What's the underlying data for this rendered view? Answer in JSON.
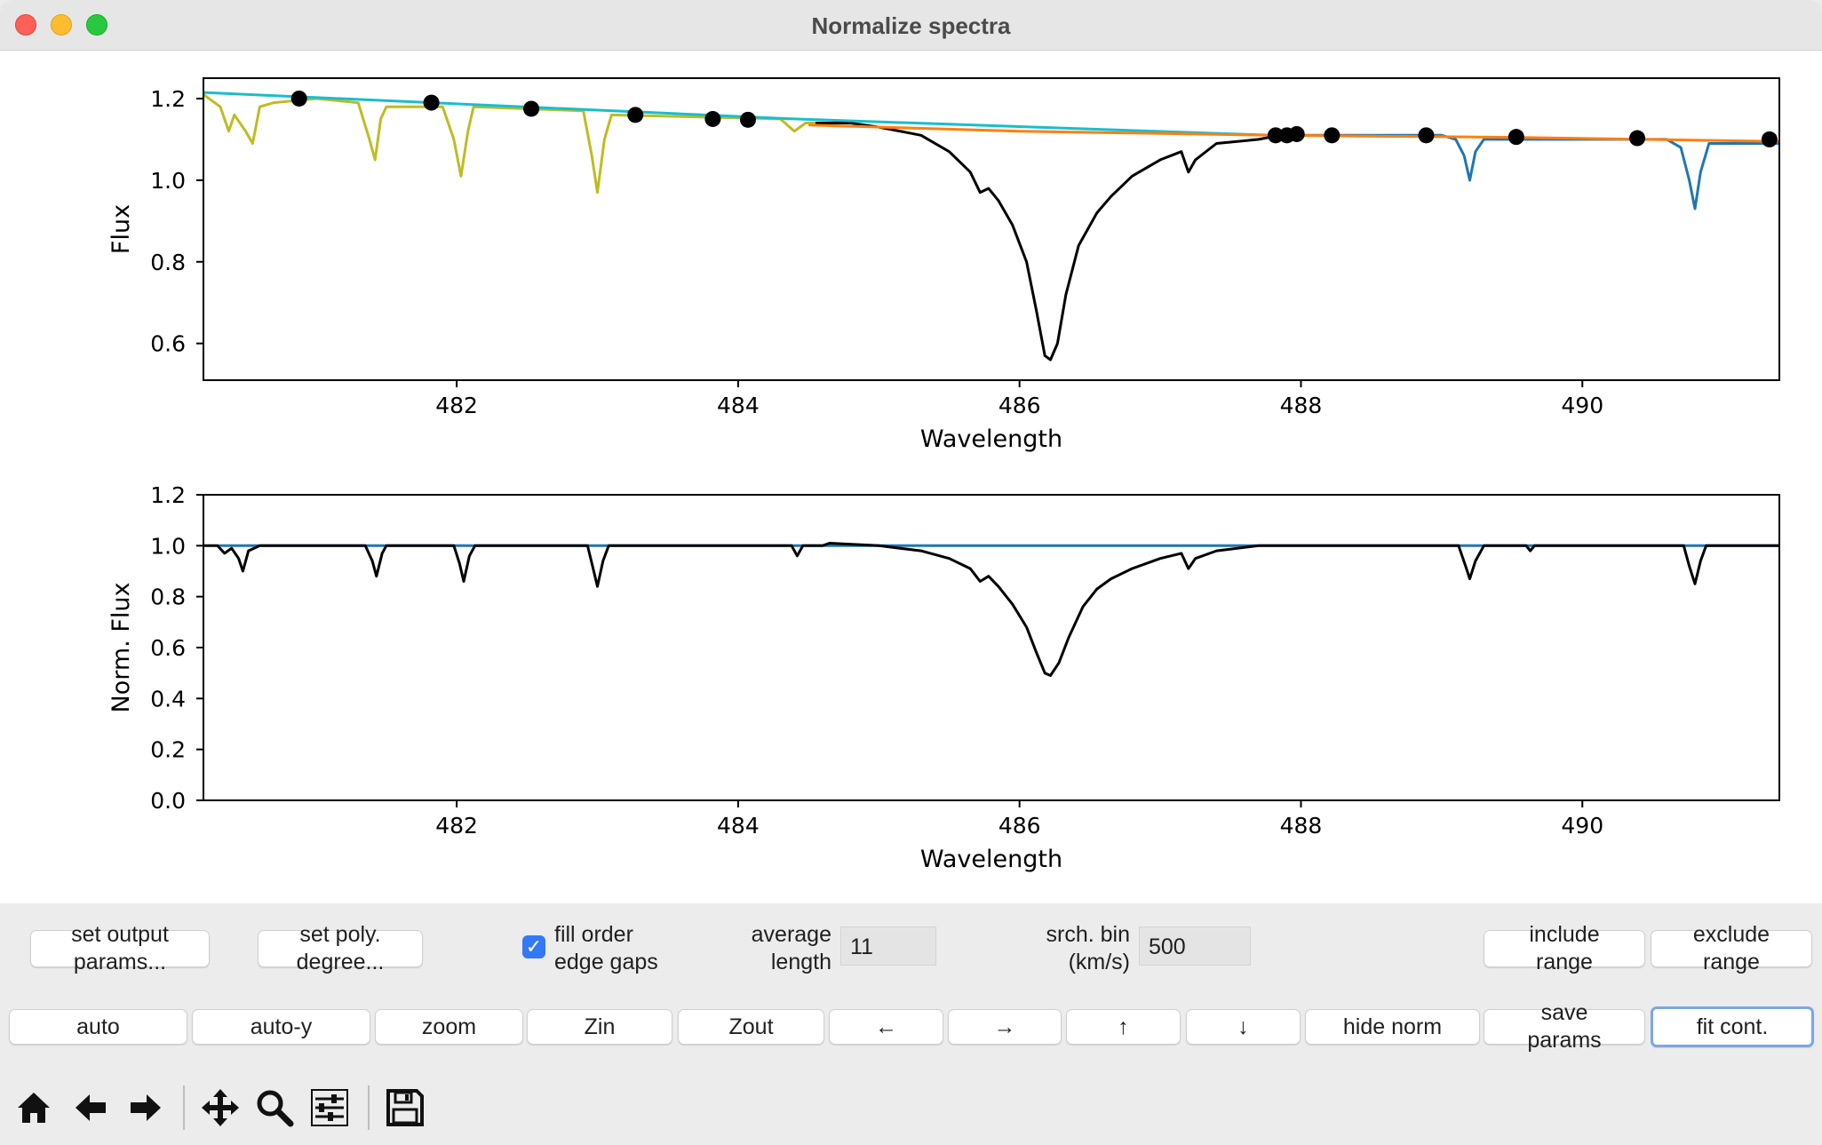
{
  "window": {
    "title": "Normalize spectra"
  },
  "chart_data": [
    {
      "type": "line",
      "xlabel": "Wavelength",
      "ylabel": "Flux",
      "xlim": [
        480.2,
        491.4
      ],
      "ylim": [
        0.51,
        1.25
      ],
      "xticks": [
        482,
        484,
        486,
        488,
        490
      ],
      "yticks": [
        0.6,
        0.8,
        1.0,
        1.2
      ],
      "series": [
        {
          "color": "#bcbd22",
          "points": [
            [
              480.2,
              1.21
            ],
            [
              480.32,
              1.18
            ],
            [
              480.38,
              1.12
            ],
            [
              480.42,
              1.16
            ],
            [
              480.5,
              1.12
            ],
            [
              480.55,
              1.09
            ],
            [
              480.6,
              1.18
            ],
            [
              480.7,
              1.19
            ],
            [
              481.0,
              1.2
            ],
            [
              481.3,
              1.19
            ],
            [
              481.38,
              1.1
            ],
            [
              481.42,
              1.05
            ],
            [
              481.46,
              1.15
            ],
            [
              481.5,
              1.18
            ],
            [
              481.9,
              1.18
            ],
            [
              481.98,
              1.1
            ],
            [
              482.03,
              1.01
            ],
            [
              482.08,
              1.12
            ],
            [
              482.12,
              1.18
            ],
            [
              482.9,
              1.17
            ],
            [
              482.96,
              1.06
            ],
            [
              483.0,
              0.97
            ],
            [
              483.05,
              1.1
            ],
            [
              483.1,
              1.16
            ],
            [
              484.3,
              1.15
            ],
            [
              484.4,
              1.12
            ],
            [
              484.48,
              1.14
            ],
            [
              484.6,
              1.14
            ]
          ]
        },
        {
          "color": "#1f77b4",
          "points": [
            [
              487.8,
              1.11
            ],
            [
              489.0,
              1.11
            ],
            [
              489.1,
              1.1
            ],
            [
              489.16,
              1.06
            ],
            [
              489.2,
              1.0
            ],
            [
              489.24,
              1.07
            ],
            [
              489.3,
              1.1
            ],
            [
              490.6,
              1.1
            ],
            [
              490.7,
              1.08
            ],
            [
              490.76,
              1.0
            ],
            [
              490.8,
              0.93
            ],
            [
              490.84,
              1.02
            ],
            [
              490.9,
              1.09
            ],
            [
              491.4,
              1.09
            ]
          ]
        },
        {
          "color": "#000000",
          "points": [
            [
              484.55,
              1.14
            ],
            [
              484.8,
              1.14
            ],
            [
              485.0,
              1.13
            ],
            [
              485.3,
              1.11
            ],
            [
              485.5,
              1.07
            ],
            [
              485.65,
              1.02
            ],
            [
              485.72,
              0.97
            ],
            [
              485.78,
              0.98
            ],
            [
              485.85,
              0.95
            ],
            [
              485.95,
              0.89
            ],
            [
              486.05,
              0.8
            ],
            [
              486.12,
              0.68
            ],
            [
              486.18,
              0.57
            ],
            [
              486.22,
              0.56
            ],
            [
              486.27,
              0.6
            ],
            [
              486.33,
              0.72
            ],
            [
              486.42,
              0.84
            ],
            [
              486.55,
              0.92
            ],
            [
              486.65,
              0.96
            ],
            [
              486.8,
              1.01
            ],
            [
              487.0,
              1.05
            ],
            [
              487.15,
              1.07
            ],
            [
              487.2,
              1.02
            ],
            [
              487.25,
              1.05
            ],
            [
              487.4,
              1.09
            ],
            [
              487.7,
              1.1
            ],
            [
              487.85,
              1.11
            ]
          ]
        },
        {
          "color": "#17becf",
          "points": [
            [
              480.2,
              1.215
            ],
            [
              484.4,
              1.15
            ],
            [
              487.8,
              1.11
            ]
          ]
        },
        {
          "color": "#ff7f0e",
          "points": [
            [
              484.5,
              1.135
            ],
            [
              486.0,
              1.12
            ],
            [
              487.8,
              1.11
            ],
            [
              489.5,
              1.105
            ],
            [
              491.4,
              1.095
            ]
          ]
        },
        {
          "color": "#000000",
          "marker": "o",
          "points": [
            [
              480.88,
              1.2
            ],
            [
              481.82,
              1.19
            ],
            [
              482.53,
              1.175
            ],
            [
              483.27,
              1.16
            ],
            [
              483.82,
              1.15
            ],
            [
              484.07,
              1.148
            ],
            [
              487.82,
              1.11
            ],
            [
              487.9,
              1.11
            ],
            [
              487.97,
              1.113
            ],
            [
              488.22,
              1.11
            ],
            [
              488.89,
              1.11
            ],
            [
              489.53,
              1.106
            ],
            [
              490.39,
              1.103
            ],
            [
              491.33,
              1.1
            ]
          ]
        }
      ]
    },
    {
      "type": "line",
      "xlabel": "Wavelength",
      "ylabel": "Norm. Flux",
      "xlim": [
        480.2,
        491.4
      ],
      "ylim": [
        0.0,
        1.2
      ],
      "xticks": [
        482,
        484,
        486,
        488,
        490
      ],
      "yticks": [
        0.0,
        0.2,
        0.4,
        0.6,
        0.8,
        1.0,
        1.2
      ],
      "series": [
        {
          "color": "#1f77b4",
          "points": [
            [
              480.3,
              1.0
            ],
            [
              491.4,
              1.0
            ]
          ]
        },
        {
          "color": "#000000",
          "points": [
            [
              480.2,
              1.0
            ],
            [
              480.3,
              1.0
            ],
            [
              480.35,
              0.97
            ],
            [
              480.4,
              0.99
            ],
            [
              480.45,
              0.95
            ],
            [
              480.48,
              0.9
            ],
            [
              480.52,
              0.98
            ],
            [
              480.6,
              1.0
            ],
            [
              481.35,
              1.0
            ],
            [
              481.4,
              0.94
            ],
            [
              481.43,
              0.88
            ],
            [
              481.47,
              0.97
            ],
            [
              481.5,
              1.0
            ],
            [
              481.98,
              1.0
            ],
            [
              482.02,
              0.93
            ],
            [
              482.05,
              0.86
            ],
            [
              482.09,
              0.96
            ],
            [
              482.13,
              1.0
            ],
            [
              482.93,
              1.0
            ],
            [
              482.97,
              0.91
            ],
            [
              483.0,
              0.84
            ],
            [
              483.04,
              0.94
            ],
            [
              483.08,
              1.0
            ],
            [
              484.38,
              1.0
            ],
            [
              484.42,
              0.96
            ],
            [
              484.46,
              1.0
            ],
            [
              484.6,
              1.0
            ],
            [
              484.65,
              1.01
            ],
            [
              485.0,
              1.0
            ],
            [
              485.3,
              0.98
            ],
            [
              485.5,
              0.95
            ],
            [
              485.65,
              0.91
            ],
            [
              485.72,
              0.86
            ],
            [
              485.78,
              0.88
            ],
            [
              485.85,
              0.84
            ],
            [
              485.95,
              0.77
            ],
            [
              486.05,
              0.68
            ],
            [
              486.12,
              0.58
            ],
            [
              486.18,
              0.5
            ],
            [
              486.22,
              0.49
            ],
            [
              486.28,
              0.54
            ],
            [
              486.35,
              0.64
            ],
            [
              486.45,
              0.76
            ],
            [
              486.55,
              0.83
            ],
            [
              486.65,
              0.87
            ],
            [
              486.8,
              0.91
            ],
            [
              487.0,
              0.95
            ],
            [
              487.15,
              0.97
            ],
            [
              487.2,
              0.91
            ],
            [
              487.25,
              0.95
            ],
            [
              487.4,
              0.98
            ],
            [
              487.7,
              1.0
            ],
            [
              489.12,
              1.0
            ],
            [
              489.17,
              0.92
            ],
            [
              489.2,
              0.87
            ],
            [
              489.24,
              0.94
            ],
            [
              489.3,
              1.0
            ],
            [
              489.6,
              1.0
            ],
            [
              489.63,
              0.98
            ],
            [
              489.66,
              1.0
            ],
            [
              490.72,
              1.0
            ],
            [
              490.76,
              0.92
            ],
            [
              490.8,
              0.85
            ],
            [
              490.84,
              0.94
            ],
            [
              490.88,
              1.0
            ],
            [
              491.4,
              1.0
            ]
          ]
        }
      ]
    }
  ],
  "controls": {
    "set_output_params": "set output\nparams...",
    "set_poly_degree": "set poly.\ndegree...",
    "fill_order_edge_gaps": "fill order\nedge gaps",
    "average_length_label": "average\nlength",
    "average_length_value": "11",
    "srch_bin_label": "srch. bin\n(km/s)",
    "srch_bin_value": "500",
    "include_range": "include\nrange",
    "exclude_range": "exclude\nrange",
    "auto": "auto",
    "auto_y": "auto-y",
    "zoom": "zoom",
    "zin": "Zin",
    "zout": "Zout",
    "left": "←",
    "right": "→",
    "up": "↑",
    "down": "↓",
    "hide_norm": "hide norm",
    "save_params": "save\nparams",
    "fit_cont": "fit cont."
  },
  "toolbar": {
    "icons": [
      "home-icon",
      "back-arrow-icon",
      "forward-arrow-icon",
      "pan-icon",
      "zoom-magnifier-icon",
      "configure-subplots-icon",
      "save-icon"
    ]
  }
}
